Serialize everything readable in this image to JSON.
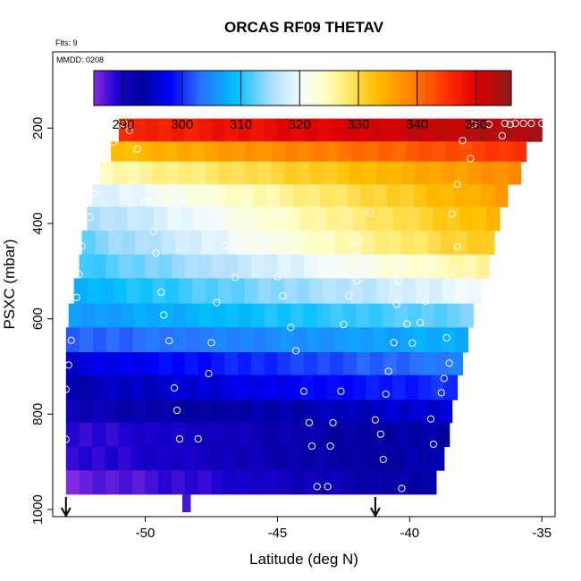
{
  "chart_data": {
    "type": "heatmap",
    "title": "ORCAS RF09 THETAV",
    "flights_label": "Flts: 9",
    "date_label": "MMDD: 0208",
    "xlabel": "Latitude (deg N)",
    "ylabel": "PSXC (mbar)",
    "xlim": [
      -53.5,
      -34.5
    ],
    "ylim": [
      1015,
      40
    ],
    "xticks": [
      -50,
      -45,
      -40,
      -35
    ],
    "yticks": [
      200,
      400,
      600,
      800,
      1000
    ],
    "colorbar": {
      "range": [
        285,
        356
      ],
      "ticks": [
        290,
        300,
        310,
        320,
        330,
        340,
        350
      ],
      "stops": [
        {
          "v": 285,
          "c": "#8a2be2"
        },
        {
          "v": 289,
          "c": "#1a00d0"
        },
        {
          "v": 293,
          "c": "#00009a"
        },
        {
          "v": 298,
          "c": "#0000ff"
        },
        {
          "v": 303,
          "c": "#2b6fff"
        },
        {
          "v": 309,
          "c": "#00bfff"
        },
        {
          "v": 315,
          "c": "#a8dcff"
        },
        {
          "v": 320,
          "c": "#f2fbff"
        },
        {
          "v": 324,
          "c": "#ffffcc"
        },
        {
          "v": 328,
          "c": "#ffea70"
        },
        {
          "v": 333,
          "c": "#ffbf00"
        },
        {
          "v": 339,
          "c": "#ff8000"
        },
        {
          "v": 345,
          "c": "#ff3000"
        },
        {
          "v": 350,
          "c": "#e00000"
        },
        {
          "v": 356,
          "c": "#8b1a1a"
        }
      ]
    },
    "bands": [
      {
        "p_top": 180,
        "p_bot": 228,
        "lat_min": -51.0,
        "lat_max": -35.0,
        "v_left": 346,
        "v_right": 354
      },
      {
        "p_top": 228,
        "p_bot": 270,
        "lat_min": -51.3,
        "lat_max": -35.6,
        "v_left": 333,
        "v_right": 345
      },
      {
        "p_top": 270,
        "p_bot": 318,
        "lat_min": -51.7,
        "lat_max": -35.8,
        "v_left": 325,
        "v_right": 338
      },
      {
        "p_top": 318,
        "p_bot": 365,
        "lat_min": -52.0,
        "lat_max": -36.3,
        "v_left": 318,
        "v_right": 336
      },
      {
        "p_top": 365,
        "p_bot": 415,
        "lat_min": -52.2,
        "lat_max": -36.6,
        "v_left": 315,
        "v_right": 334
      },
      {
        "p_top": 415,
        "p_bot": 465,
        "lat_min": -52.4,
        "lat_max": -36.8,
        "v_left": 313,
        "v_right": 332
      },
      {
        "p_top": 465,
        "p_bot": 515,
        "lat_min": -52.5,
        "lat_max": -37.0,
        "v_left": 311,
        "v_right": 326
      },
      {
        "p_top": 515,
        "p_bot": 568,
        "lat_min": -52.7,
        "lat_max": -37.3,
        "v_left": 308,
        "v_right": 320
      },
      {
        "p_top": 568,
        "p_bot": 618,
        "lat_min": -52.9,
        "lat_max": -37.6,
        "v_left": 306,
        "v_right": 313
      },
      {
        "p_top": 618,
        "p_bot": 670,
        "lat_min": -53.0,
        "lat_max": -37.8,
        "v_left": 302,
        "v_right": 308
      },
      {
        "p_top": 670,
        "p_bot": 718,
        "lat_min": -53.0,
        "lat_max": -38.0,
        "v_left": 296,
        "v_right": 304
      },
      {
        "p_top": 718,
        "p_bot": 770,
        "lat_min": -53.0,
        "lat_max": -38.2,
        "v_left": 294,
        "v_right": 300
      },
      {
        "p_top": 770,
        "p_bot": 818,
        "lat_min": -53.0,
        "lat_max": -38.4,
        "v_left": 291,
        "v_right": 296
      },
      {
        "p_top": 818,
        "p_bot": 868,
        "lat_min": -53.0,
        "lat_max": -38.5,
        "v_left": 288,
        "v_right": 294
      },
      {
        "p_top": 868,
        "p_bot": 918,
        "lat_min": -53.0,
        "lat_max": -38.7,
        "v_left": 288,
        "v_right": 294
      },
      {
        "p_top": 918,
        "p_bot": 968,
        "lat_min": -53.0,
        "lat_max": -39.0,
        "v_left": 286,
        "v_right": 293
      },
      {
        "p_top": 968,
        "p_bot": 1005,
        "lat_min": -48.6,
        "lat_max": -48.3,
        "v_left": 287,
        "v_right": 287
      }
    ],
    "points": [
      [
        -51.0,
        193
      ],
      [
        -50.8,
        191
      ],
      [
        -50.6,
        205
      ],
      [
        -51.2,
        230
      ],
      [
        -50.3,
        244
      ],
      [
        -51.7,
        287
      ],
      [
        -51.9,
        338
      ],
      [
        -52.1,
        387
      ],
      [
        -50.0,
        352
      ],
      [
        -49.7,
        417
      ],
      [
        -52.4,
        448
      ],
      [
        -49.6,
        462
      ],
      [
        -52.5,
        507
      ],
      [
        -52.6,
        555
      ],
      [
        -49.4,
        544
      ],
      [
        -49.3,
        592
      ],
      [
        -52.8,
        645
      ],
      [
        -49.1,
        646
      ],
      [
        -52.9,
        697
      ],
      [
        -48.9,
        745
      ],
      [
        -53.0,
        748
      ],
      [
        -48.8,
        792
      ],
      [
        -53.0,
        853
      ],
      [
        -48.7,
        852
      ],
      [
        -48.0,
        852
      ],
      [
        -47.6,
        715
      ],
      [
        -47.5,
        650
      ],
      [
        -47.3,
        566
      ],
      [
        -47.0,
        447
      ],
      [
        -46.6,
        513
      ],
      [
        -46.3,
        393
      ],
      [
        -45.2,
        428
      ],
      [
        -45.0,
        512
      ],
      [
        -44.8,
        552
      ],
      [
        -44.5,
        618
      ],
      [
        -44.3,
        667
      ],
      [
        -44.0,
        752
      ],
      [
        -43.8,
        818
      ],
      [
        -43.7,
        867
      ],
      [
        -43.5,
        952
      ],
      [
        -43.1,
        952
      ],
      [
        -43.0,
        867
      ],
      [
        -42.9,
        818
      ],
      [
        -42.6,
        752
      ],
      [
        -42.5,
        612
      ],
      [
        -42.3,
        552
      ],
      [
        -42.0,
        520
      ],
      [
        -41.9,
        437
      ],
      [
        -41.5,
        377
      ],
      [
        -41.3,
        812
      ],
      [
        -41.1,
        842
      ],
      [
        -41.0,
        895
      ],
      [
        -40.9,
        758
      ],
      [
        -40.8,
        710
      ],
      [
        -40.6,
        650
      ],
      [
        -40.5,
        570
      ],
      [
        -40.4,
        520
      ],
      [
        -40.3,
        472
      ],
      [
        -40.3,
        956
      ],
      [
        -40.1,
        611
      ],
      [
        -39.9,
        651
      ],
      [
        -39.6,
        608
      ],
      [
        -39.4,
        563
      ],
      [
        -39.2,
        810
      ],
      [
        -39.1,
        863
      ],
      [
        -38.8,
        755
      ],
      [
        -38.7,
        725
      ],
      [
        -38.6,
        952
      ],
      [
        -38.6,
        640
      ],
      [
        -38.5,
        693
      ],
      [
        -38.3,
        503
      ],
      [
        -38.2,
        449
      ],
      [
        -38.4,
        380
      ],
      [
        -38.2,
        318
      ],
      [
        -38.0,
        226
      ],
      [
        -37.7,
        264
      ],
      [
        -37.6,
        192
      ],
      [
        -37.0,
        192
      ],
      [
        -36.5,
        216
      ],
      [
        -36.4,
        190
      ],
      [
        -36.0,
        190
      ],
      [
        -35.7,
        190
      ],
      [
        -35.4,
        190
      ],
      [
        -35.0,
        190
      ],
      [
        -36.2,
        192
      ]
    ],
    "flight_markers_lat": [
      -53.0,
      -41.3
    ]
  }
}
